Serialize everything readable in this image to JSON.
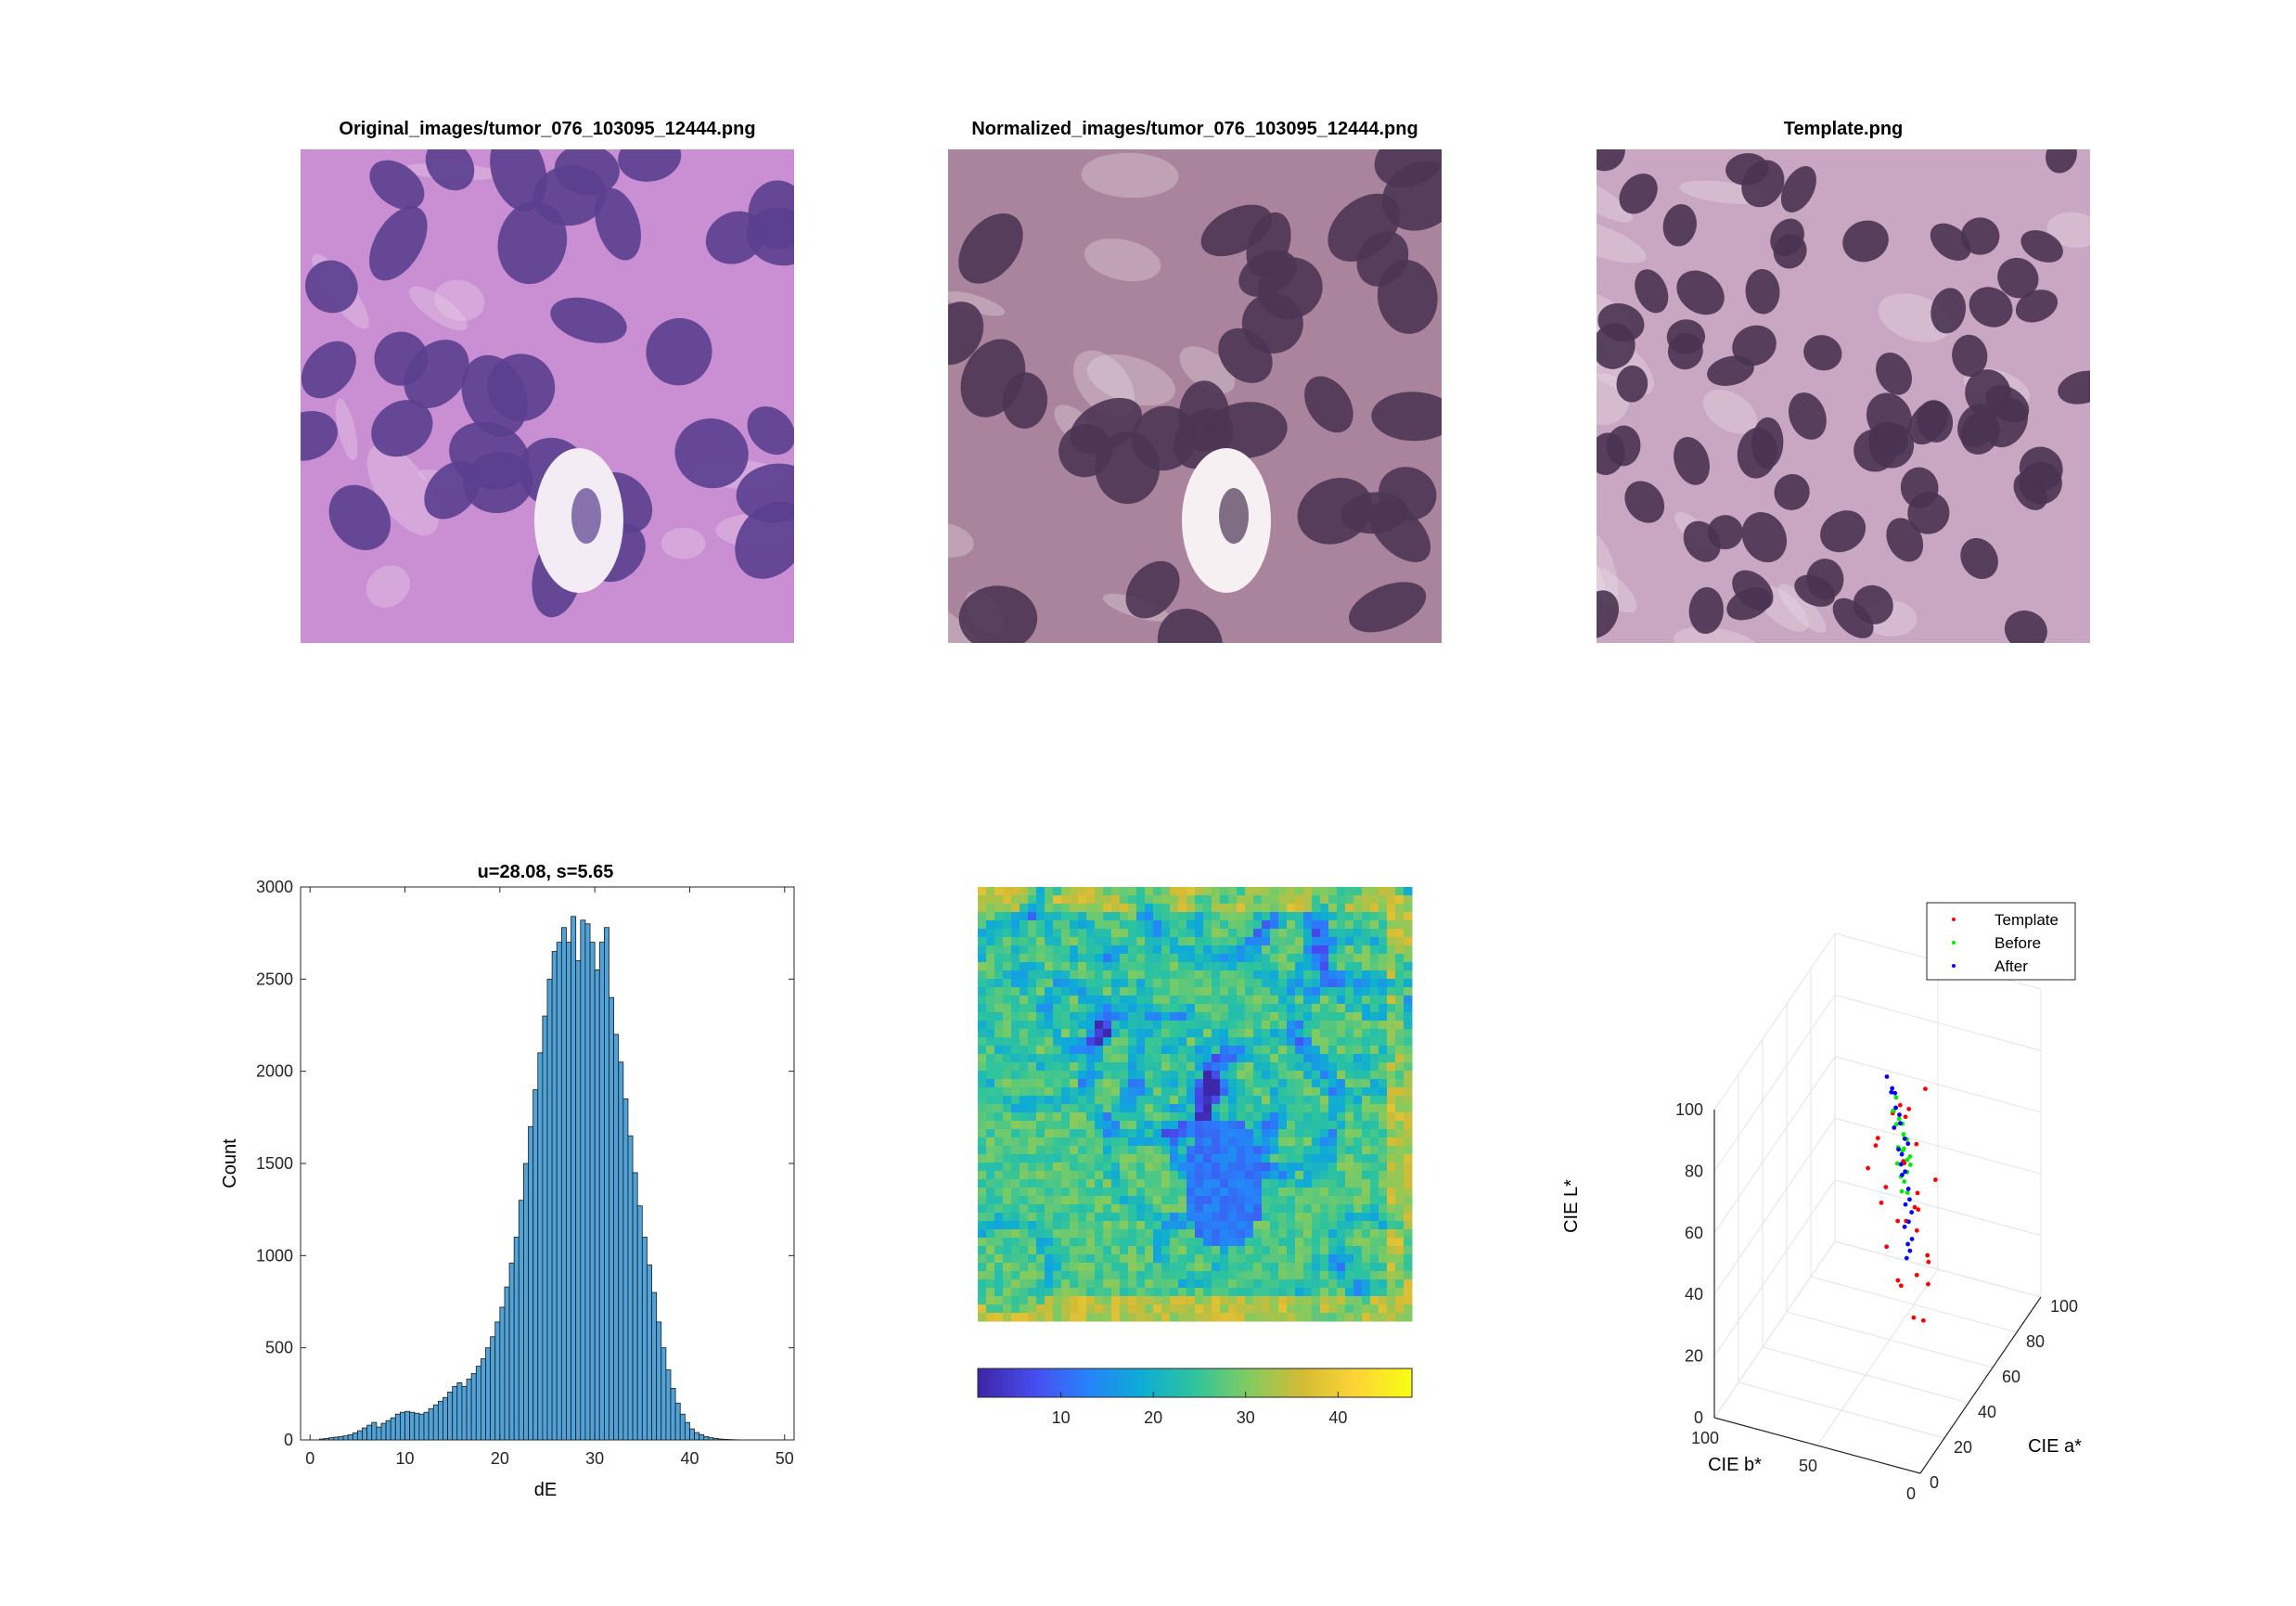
{
  "images": [
    {
      "title": "Original_images/tumor_076_103095_12444.png",
      "palette": {
        "bg": "#c98fd2",
        "nucleus": "#5a3f8e",
        "light": "#ead3ef",
        "lumen": "#f4ecf5"
      }
    },
    {
      "title": "Normalized_images/tumor_076_103095_12444.png",
      "palette": {
        "bg": "#a9849c",
        "nucleus": "#4d3554",
        "light": "#e9dde4",
        "lumen": "#f6f0f2"
      }
    },
    {
      "title": "Template.png",
      "palette": {
        "bg": "#c9a7c2",
        "nucleus": "#4a3352",
        "light": "#ece0ea",
        "lumen": "#f2e8ef"
      }
    }
  ],
  "heatmap": {
    "colorbar_ticks": [
      "10",
      "20",
      "30",
      "40"
    ],
    "range": [
      1,
      48
    ]
  },
  "chart_data": [
    {
      "type": "bar",
      "title": "u=28.08, s=5.65",
      "xlabel": "dE",
      "ylabel": "Count",
      "xlim": [
        -1,
        51
      ],
      "ylim": [
        0,
        3000
      ],
      "xticks": [
        "0",
        "10",
        "20",
        "30",
        "40",
        "50"
      ],
      "yticks": [
        "0",
        "500",
        "1000",
        "1500",
        "2000",
        "2500",
        "3000"
      ],
      "bin_start": 1,
      "bin_width": 0.5,
      "values": [
        5,
        8,
        12,
        15,
        18,
        22,
        28,
        38,
        50,
        65,
        80,
        95,
        70,
        90,
        105,
        120,
        140,
        150,
        155,
        150,
        145,
        140,
        150,
        170,
        190,
        210,
        230,
        260,
        290,
        310,
        290,
        330,
        360,
        400,
        440,
        500,
        560,
        640,
        720,
        830,
        960,
        1100,
        1300,
        1500,
        1700,
        1900,
        2100,
        2300,
        2500,
        2650,
        2700,
        2780,
        2700,
        2840,
        2600,
        2820,
        2800,
        2700,
        2550,
        2700,
        2780,
        2400,
        2200,
        2050,
        1850,
        1650,
        1450,
        1270,
        1100,
        950,
        800,
        640,
        500,
        380,
        280,
        200,
        140,
        95,
        60,
        40,
        28,
        18,
        12,
        8,
        5,
        3,
        2,
        1
      ]
    },
    {
      "type": "scatter",
      "dimensions": 3,
      "xlabel": "CIE a*",
      "ylabel": "CIE b*",
      "zlabel": "CIE L*",
      "xlim": [
        0,
        100
      ],
      "ylim": [
        0,
        100
      ],
      "zlim": [
        0,
        100
      ],
      "xticks": [
        "0",
        "20",
        "40",
        "60",
        "80",
        "100"
      ],
      "yticks": [
        "0",
        "50",
        "100"
      ],
      "zticks": [
        "0",
        "20",
        "40",
        "60",
        "80",
        "100"
      ],
      "legend_position": "top-right",
      "series": [
        {
          "name": "Template",
          "color": "#ff0000",
          "values": [
            [
              42,
              38,
              86
            ],
            [
              48,
              30,
              74
            ],
            [
              52,
              36,
              82
            ],
            [
              55,
              40,
              62
            ],
            [
              45,
              28,
              48
            ],
            [
              60,
              42,
              40
            ],
            [
              38,
              32,
              92
            ],
            [
              50,
              46,
              56
            ],
            [
              44,
              34,
              70
            ],
            [
              58,
              30,
              30
            ],
            [
              62,
              38,
              22
            ],
            [
              40,
              44,
              78
            ],
            [
              54,
              48,
              34
            ],
            [
              66,
              40,
              46
            ],
            [
              47,
              26,
              18
            ],
            [
              36,
              40,
              60
            ],
            [
              52,
              28,
              90
            ],
            [
              64,
              34,
              28
            ],
            [
              42,
              50,
              66
            ],
            [
              56,
              36,
              12
            ],
            [
              70,
              42,
              38
            ],
            [
              46,
              40,
              84
            ],
            [
              50,
              32,
              52
            ],
            [
              60,
              46,
              20
            ],
            [
              39,
              30,
              88
            ],
            [
              53,
              42,
              44
            ],
            [
              68,
              36,
              16
            ],
            [
              45,
              48,
              72
            ],
            [
              57,
              26,
              58
            ],
            [
              49,
              38,
              26
            ]
          ]
        },
        {
          "name": "Before",
          "color": "#00ee00",
          "values": [
            [
              48,
              40,
              84
            ],
            [
              50,
              38,
              78
            ],
            [
              52,
              37,
              72
            ],
            [
              53,
              39,
              68
            ],
            [
              51,
              41,
              64
            ],
            [
              54,
              38,
              60
            ],
            [
              55,
              40,
              56
            ],
            [
              52,
              42,
              76
            ],
            [
              49,
              39,
              80
            ],
            [
              53,
              36,
              66
            ],
            [
              56,
              39,
              52
            ],
            [
              54,
              41,
              58
            ],
            [
              50,
              40,
              70
            ],
            [
              51,
              38,
              74
            ],
            [
              55,
              37,
              62
            ],
            [
              53,
              40,
              54
            ],
            [
              49,
              42,
              82
            ],
            [
              52,
              39,
              68
            ],
            [
              54,
              38,
              64
            ],
            [
              50,
              41,
              86
            ]
          ]
        },
        {
          "name": "After",
          "color": "#0000ff",
          "values": [
            [
              44,
              42,
              96
            ],
            [
              46,
              41,
              90
            ],
            [
              48,
              40,
              84
            ],
            [
              50,
              39,
              78
            ],
            [
              52,
              38,
              72
            ],
            [
              53,
              40,
              66
            ],
            [
              54,
              39,
              60
            ],
            [
              55,
              38,
              54
            ],
            [
              56,
              40,
              48
            ],
            [
              57,
              39,
              42
            ],
            [
              58,
              38,
              36
            ],
            [
              57,
              40,
              30
            ],
            [
              49,
              41,
              88
            ],
            [
              51,
              40,
              80
            ],
            [
              53,
              37,
              70
            ],
            [
              54,
              41,
              62
            ],
            [
              56,
              38,
              50
            ],
            [
              57,
              41,
              40
            ],
            [
              58,
              39,
              32
            ],
            [
              45,
              40,
              92
            ],
            [
              50,
              42,
              76
            ],
            [
              52,
              41,
              68
            ],
            [
              55,
              41,
              58
            ],
            [
              56,
              37,
              46
            ],
            [
              58,
              40,
              34
            ]
          ]
        }
      ]
    }
  ]
}
